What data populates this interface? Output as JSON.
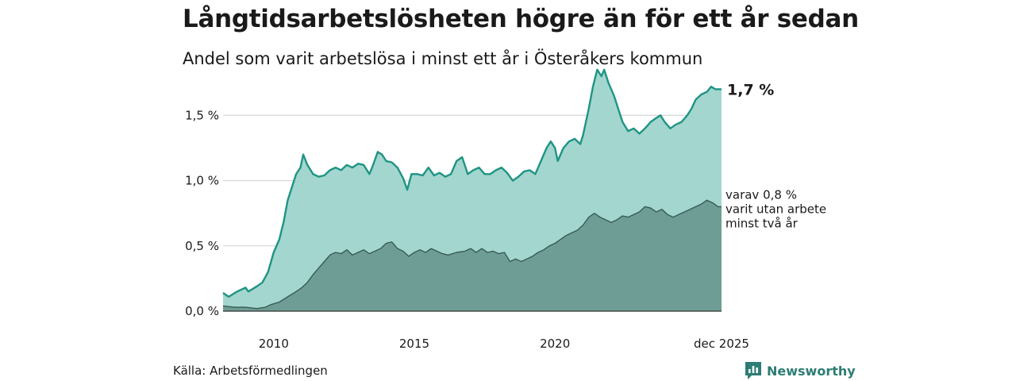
{
  "header": {
    "title": "Långtidsarbetslösheten högre än för ett år sedan",
    "subtitle": "Andel som varit arbetslösa i minst ett år i Österåkers kommun"
  },
  "footer": {
    "source": "Källa: Arbetsförmedlingen",
    "brand": "Newsworthy"
  },
  "colors": {
    "series1_line": "#1f9484",
    "series1_fill": "#a3d6cf",
    "series2_line": "#365c56",
    "series2_fill": "#6e9d95",
    "grid": "#d9d9d9",
    "brand": "#2d7d74"
  },
  "icons": {
    "brand_logo": "newsworthy-chart-logo-icon"
  },
  "chart_data": {
    "type": "area",
    "x_unit": "year (decimal)",
    "xlim": [
      2008.2,
      2025.92
    ],
    "ylim": [
      0,
      1.8
    ],
    "grid": true,
    "legend": "none",
    "x_ticks": [
      {
        "value": 2010,
        "label": "2010"
      },
      {
        "value": 2015,
        "label": "2015"
      },
      {
        "value": 2020,
        "label": "2020"
      },
      {
        "value": 2025.92,
        "label": "dec 2025"
      }
    ],
    "y_ticks": [
      {
        "value": 0,
        "label": "0,0 %"
      },
      {
        "value": 0.5,
        "label": "0,5 %"
      },
      {
        "value": 1.0,
        "label": "1,0 %"
      },
      {
        "value": 1.5,
        "label": "1,5 %"
      }
    ],
    "end_labels": {
      "series1": "1,7 %",
      "series2_lines": [
        "varav 0,8 %",
        "varit utan arbete",
        "minst två år"
      ]
    },
    "series": [
      {
        "points": [
          [
            2008.2,
            0.14
          ],
          [
            2008.4,
            0.11
          ],
          [
            2008.7,
            0.15
          ],
          [
            2009.0,
            0.18
          ],
          [
            2009.1,
            0.15
          ],
          [
            2009.4,
            0.19
          ],
          [
            2009.6,
            0.22
          ],
          [
            2009.8,
            0.3
          ],
          [
            2010.0,
            0.45
          ],
          [
            2010.2,
            0.55
          ],
          [
            2010.35,
            0.68
          ],
          [
            2010.5,
            0.85
          ],
          [
            2010.65,
            0.95
          ],
          [
            2010.8,
            1.05
          ],
          [
            2010.95,
            1.1
          ],
          [
            2011.05,
            1.2
          ],
          [
            2011.2,
            1.12
          ],
          [
            2011.4,
            1.05
          ],
          [
            2011.6,
            1.03
          ],
          [
            2011.8,
            1.04
          ],
          [
            2012.0,
            1.08
          ],
          [
            2012.2,
            1.1
          ],
          [
            2012.4,
            1.08
          ],
          [
            2012.6,
            1.12
          ],
          [
            2012.8,
            1.1
          ],
          [
            2013.0,
            1.13
          ],
          [
            2013.2,
            1.12
          ],
          [
            2013.4,
            1.05
          ],
          [
            2013.5,
            1.1
          ],
          [
            2013.7,
            1.22
          ],
          [
            2013.85,
            1.2
          ],
          [
            2014.0,
            1.15
          ],
          [
            2014.2,
            1.14
          ],
          [
            2014.4,
            1.1
          ],
          [
            2014.6,
            1.02
          ],
          [
            2014.75,
            0.93
          ],
          [
            2014.9,
            1.05
          ],
          [
            2015.1,
            1.05
          ],
          [
            2015.3,
            1.04
          ],
          [
            2015.5,
            1.1
          ],
          [
            2015.7,
            1.04
          ],
          [
            2015.9,
            1.06
          ],
          [
            2016.1,
            1.03
          ],
          [
            2016.3,
            1.05
          ],
          [
            2016.5,
            1.15
          ],
          [
            2016.7,
            1.18
          ],
          [
            2016.9,
            1.05
          ],
          [
            2017.1,
            1.08
          ],
          [
            2017.3,
            1.1
          ],
          [
            2017.5,
            1.05
          ],
          [
            2017.7,
            1.05
          ],
          [
            2017.9,
            1.08
          ],
          [
            2018.1,
            1.1
          ],
          [
            2018.3,
            1.06
          ],
          [
            2018.5,
            1.0
          ],
          [
            2018.7,
            1.03
          ],
          [
            2018.9,
            1.07
          ],
          [
            2019.1,
            1.08
          ],
          [
            2019.3,
            1.05
          ],
          [
            2019.5,
            1.15
          ],
          [
            2019.7,
            1.25
          ],
          [
            2019.85,
            1.3
          ],
          [
            2020.0,
            1.25
          ],
          [
            2020.1,
            1.15
          ],
          [
            2020.3,
            1.25
          ],
          [
            2020.5,
            1.3
          ],
          [
            2020.7,
            1.32
          ],
          [
            2020.9,
            1.28
          ],
          [
            2021.0,
            1.35
          ],
          [
            2021.2,
            1.55
          ],
          [
            2021.35,
            1.72
          ],
          [
            2021.5,
            1.85
          ],
          [
            2021.65,
            1.8
          ],
          [
            2021.75,
            1.85
          ],
          [
            2021.9,
            1.75
          ],
          [
            2022.1,
            1.65
          ],
          [
            2022.25,
            1.55
          ],
          [
            2022.4,
            1.45
          ],
          [
            2022.6,
            1.38
          ],
          [
            2022.8,
            1.4
          ],
          [
            2023.0,
            1.36
          ],
          [
            2023.2,
            1.4
          ],
          [
            2023.4,
            1.45
          ],
          [
            2023.6,
            1.48
          ],
          [
            2023.75,
            1.5
          ],
          [
            2023.9,
            1.45
          ],
          [
            2024.1,
            1.4
          ],
          [
            2024.3,
            1.43
          ],
          [
            2024.5,
            1.45
          ],
          [
            2024.7,
            1.5
          ],
          [
            2024.85,
            1.55
          ],
          [
            2025.0,
            1.62
          ],
          [
            2025.2,
            1.66
          ],
          [
            2025.4,
            1.68
          ],
          [
            2025.55,
            1.72
          ],
          [
            2025.7,
            1.7
          ],
          [
            2025.92,
            1.7
          ]
        ]
      },
      {
        "points": [
          [
            2008.2,
            0.04
          ],
          [
            2008.6,
            0.03
          ],
          [
            2009.0,
            0.03
          ],
          [
            2009.4,
            0.02
          ],
          [
            2009.7,
            0.03
          ],
          [
            2009.9,
            0.05
          ],
          [
            2010.2,
            0.07
          ],
          [
            2010.5,
            0.11
          ],
          [
            2010.8,
            0.15
          ],
          [
            2011.0,
            0.18
          ],
          [
            2011.2,
            0.22
          ],
          [
            2011.4,
            0.28
          ],
          [
            2011.6,
            0.33
          ],
          [
            2011.8,
            0.38
          ],
          [
            2012.0,
            0.43
          ],
          [
            2012.2,
            0.45
          ],
          [
            2012.4,
            0.44
          ],
          [
            2012.6,
            0.47
          ],
          [
            2012.8,
            0.43
          ],
          [
            2013.0,
            0.45
          ],
          [
            2013.2,
            0.47
          ],
          [
            2013.4,
            0.44
          ],
          [
            2013.6,
            0.46
          ],
          [
            2013.8,
            0.48
          ],
          [
            2014.0,
            0.52
          ],
          [
            2014.2,
            0.53
          ],
          [
            2014.4,
            0.48
          ],
          [
            2014.6,
            0.46
          ],
          [
            2014.8,
            0.42
          ],
          [
            2015.0,
            0.45
          ],
          [
            2015.2,
            0.47
          ],
          [
            2015.4,
            0.45
          ],
          [
            2015.6,
            0.48
          ],
          [
            2015.8,
            0.46
          ],
          [
            2016.0,
            0.44
          ],
          [
            2016.2,
            0.43
          ],
          [
            2016.5,
            0.45
          ],
          [
            2016.8,
            0.46
          ],
          [
            2017.0,
            0.48
          ],
          [
            2017.2,
            0.45
          ],
          [
            2017.4,
            0.48
          ],
          [
            2017.6,
            0.45
          ],
          [
            2017.8,
            0.46
          ],
          [
            2018.0,
            0.44
          ],
          [
            2018.2,
            0.45
          ],
          [
            2018.4,
            0.38
          ],
          [
            2018.6,
            0.4
          ],
          [
            2018.8,
            0.38
          ],
          [
            2019.0,
            0.4
          ],
          [
            2019.2,
            0.42
          ],
          [
            2019.4,
            0.45
          ],
          [
            2019.6,
            0.47
          ],
          [
            2019.8,
            0.5
          ],
          [
            2020.0,
            0.52
          ],
          [
            2020.2,
            0.55
          ],
          [
            2020.4,
            0.58
          ],
          [
            2020.6,
            0.6
          ],
          [
            2020.8,
            0.62
          ],
          [
            2021.0,
            0.66
          ],
          [
            2021.2,
            0.72
          ],
          [
            2021.4,
            0.75
          ],
          [
            2021.6,
            0.72
          ],
          [
            2021.8,
            0.7
          ],
          [
            2022.0,
            0.68
          ],
          [
            2022.2,
            0.7
          ],
          [
            2022.4,
            0.73
          ],
          [
            2022.6,
            0.72
          ],
          [
            2022.8,
            0.74
          ],
          [
            2023.0,
            0.76
          ],
          [
            2023.2,
            0.8
          ],
          [
            2023.4,
            0.79
          ],
          [
            2023.6,
            0.76
          ],
          [
            2023.8,
            0.78
          ],
          [
            2024.0,
            0.74
          ],
          [
            2024.2,
            0.72
          ],
          [
            2024.4,
            0.74
          ],
          [
            2024.6,
            0.76
          ],
          [
            2024.8,
            0.78
          ],
          [
            2025.0,
            0.8
          ],
          [
            2025.2,
            0.82
          ],
          [
            2025.4,
            0.85
          ],
          [
            2025.6,
            0.83
          ],
          [
            2025.8,
            0.8
          ],
          [
            2025.92,
            0.8
          ]
        ]
      }
    ]
  }
}
